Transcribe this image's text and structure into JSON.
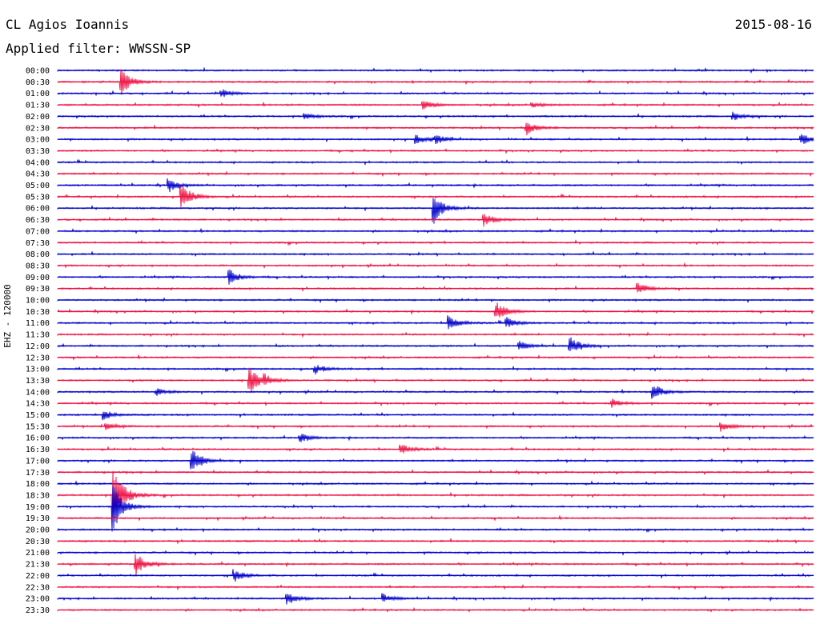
{
  "header": {
    "station": "CL Agios Ioannis",
    "date": "2015-08-16",
    "filter": "Applied filter: WWSSN-SP"
  },
  "chart_data": {
    "type": "line",
    "ylabel": "EHZ - 120000",
    "row_labels": [
      "00:00",
      "00:30",
      "01:00",
      "01:30",
      "02:00",
      "02:30",
      "03:00",
      "03:30",
      "04:00",
      "04:30",
      "05:00",
      "05:30",
      "06:00",
      "06:30",
      "07:00",
      "07:30",
      "08:00",
      "08:30",
      "09:00",
      "09:30",
      "10:00",
      "10:30",
      "11:00",
      "11:30",
      "12:00",
      "12:30",
      "13:00",
      "13:30",
      "14:00",
      "14:30",
      "15:00",
      "15:30",
      "16:00",
      "16:30",
      "17:00",
      "17:30",
      "18:00",
      "18:30",
      "19:00",
      "19:30",
      "20:00",
      "20:30",
      "21:00",
      "21:30",
      "22:00",
      "22:30",
      "23:00",
      "23:30"
    ],
    "series_colors": [
      "#0000cc",
      "#ee1144"
    ],
    "trace_minutes": 30,
    "events": [
      {
        "row": 1,
        "minute": 2.5,
        "amp": 1.0
      },
      {
        "row": 2,
        "minute": 6.5,
        "amp": 0.3
      },
      {
        "row": 3,
        "minute": 14.5,
        "amp": 0.35
      },
      {
        "row": 3,
        "minute": 18.8,
        "amp": 0.2
      },
      {
        "row": 4,
        "minute": 9.8,
        "amp": 0.25
      },
      {
        "row": 4,
        "minute": 26.8,
        "amp": 0.3
      },
      {
        "row": 5,
        "minute": 18.6,
        "amp": 0.5
      },
      {
        "row": 6,
        "minute": 14.2,
        "amp": 0.35
      },
      {
        "row": 6,
        "minute": 15.0,
        "amp": 0.3
      },
      {
        "row": 6,
        "minute": 29.5,
        "amp": 0.45
      },
      {
        "row": 10,
        "minute": 4.4,
        "amp": 0.45
      },
      {
        "row": 11,
        "minute": 4.9,
        "amp": 1.0
      },
      {
        "row": 12,
        "minute": 14.9,
        "amp": 1.2
      },
      {
        "row": 13,
        "minute": 16.9,
        "amp": 0.5
      },
      {
        "row": 18,
        "minute": 6.8,
        "amp": 0.6
      },
      {
        "row": 19,
        "minute": 23.0,
        "amp": 0.5
      },
      {
        "row": 21,
        "minute": 17.4,
        "amp": 0.7
      },
      {
        "row": 22,
        "minute": 15.5,
        "amp": 0.6
      },
      {
        "row": 22,
        "minute": 17.8,
        "amp": 0.4
      },
      {
        "row": 24,
        "minute": 20.3,
        "amp": 0.7
      },
      {
        "row": 24,
        "minute": 18.3,
        "amp": 0.35
      },
      {
        "row": 26,
        "minute": 10.2,
        "amp": 0.35
      },
      {
        "row": 27,
        "minute": 7.6,
        "amp": 1.0
      },
      {
        "row": 27,
        "minute": 8.2,
        "amp": 0.3
      },
      {
        "row": 28,
        "minute": 23.6,
        "amp": 0.65
      },
      {
        "row": 28,
        "minute": 3.9,
        "amp": 0.25
      },
      {
        "row": 29,
        "minute": 22.0,
        "amp": 0.3
      },
      {
        "row": 30,
        "minute": 1.8,
        "amp": 0.35
      },
      {
        "row": 31,
        "minute": 1.9,
        "amp": 0.35
      },
      {
        "row": 31,
        "minute": 26.3,
        "amp": 0.4
      },
      {
        "row": 32,
        "minute": 9.6,
        "amp": 0.35
      },
      {
        "row": 33,
        "minute": 13.6,
        "amp": 0.4
      },
      {
        "row": 34,
        "minute": 5.3,
        "amp": 1.0
      },
      {
        "row": 37,
        "minute": 2.2,
        "amp": 2.5
      },
      {
        "row": 38,
        "minute": 2.2,
        "amp": 1.8
      },
      {
        "row": 43,
        "minute": 3.1,
        "amp": 0.8
      },
      {
        "row": 44,
        "minute": 7.0,
        "amp": 0.45
      },
      {
        "row": 46,
        "minute": 9.1,
        "amp": 0.45
      },
      {
        "row": 46,
        "minute": 12.9,
        "amp": 0.35
      }
    ]
  }
}
